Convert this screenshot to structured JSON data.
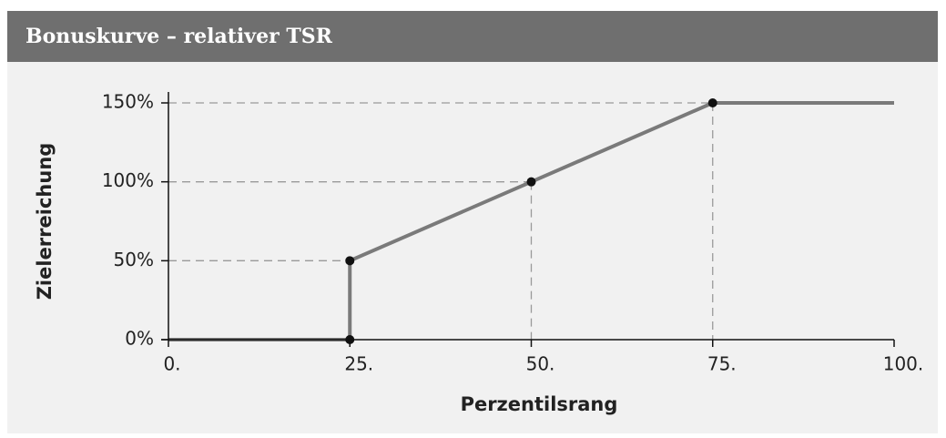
{
  "chart_data": {
    "type": "line",
    "title": "Bonuskurve – relativer TSR",
    "x_label": "Perzentilsrang",
    "y_label": "Zielerreichung",
    "x": [
      0,
      25,
      25,
      50,
      75,
      100
    ],
    "series": [
      {
        "color": "#7a7a7a",
        "values": [
          0,
          0,
          50,
          100,
          150,
          150
        ]
      }
    ],
    "xlim": [
      0,
      100
    ],
    "xticks": [
      {
        "value": 0,
        "label": "0."
      },
      {
        "value": 25,
        "label": "25."
      },
      {
        "value": 50,
        "label": "50."
      },
      {
        "value": 75,
        "label": "75."
      },
      {
        "value": 100,
        "label": "100."
      }
    ],
    "ylim": [
      0,
      150
    ],
    "yticks": [
      {
        "value": 0,
        "label": "0%"
      },
      {
        "value": 50,
        "label": "50%"
      },
      {
        "value": 100,
        "label": "100%"
      },
      {
        "value": 150,
        "label": "150%"
      }
    ],
    "grid": false
  }
}
